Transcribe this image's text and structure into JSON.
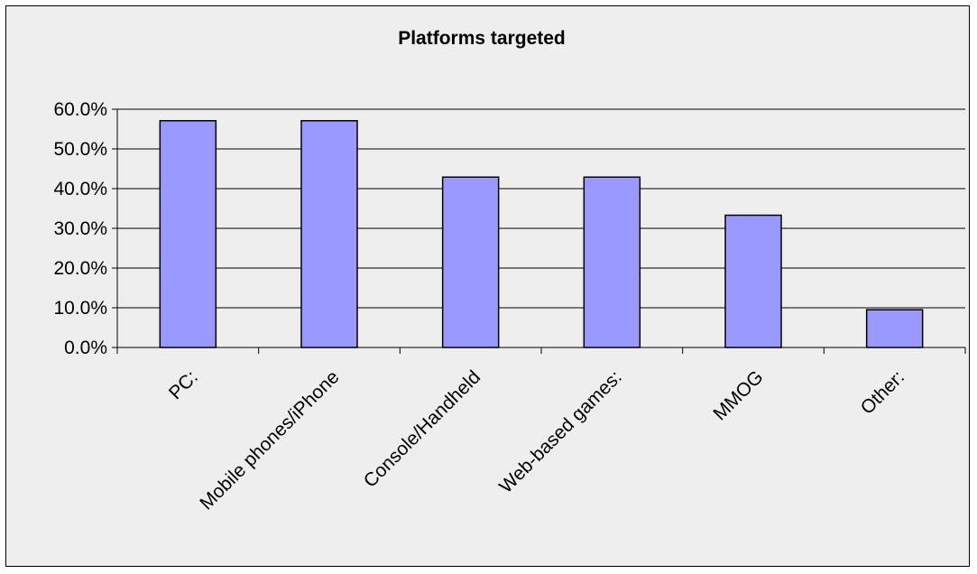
{
  "chart_data": {
    "type": "bar",
    "title": "Platforms targeted",
    "categories": [
      "PC:",
      "Mobile phones/iPhone",
      "Console/Handheld",
      "Web-based games:",
      "MMOG",
      "Other:"
    ],
    "values": [
      57.1,
      57.1,
      42.9,
      42.9,
      33.3,
      9.5
    ],
    "ylim": [
      0,
      60
    ],
    "yticks": [
      "0.0%",
      "10.0%",
      "20.0%",
      "30.0%",
      "40.0%",
      "50.0%",
      "60.0%"
    ],
    "xlabel": "",
    "ylabel": "",
    "grid": true,
    "legend": "none",
    "colors": {
      "bar": "#9999ff",
      "background": "#eeeeee",
      "grid": "#000000"
    }
  }
}
